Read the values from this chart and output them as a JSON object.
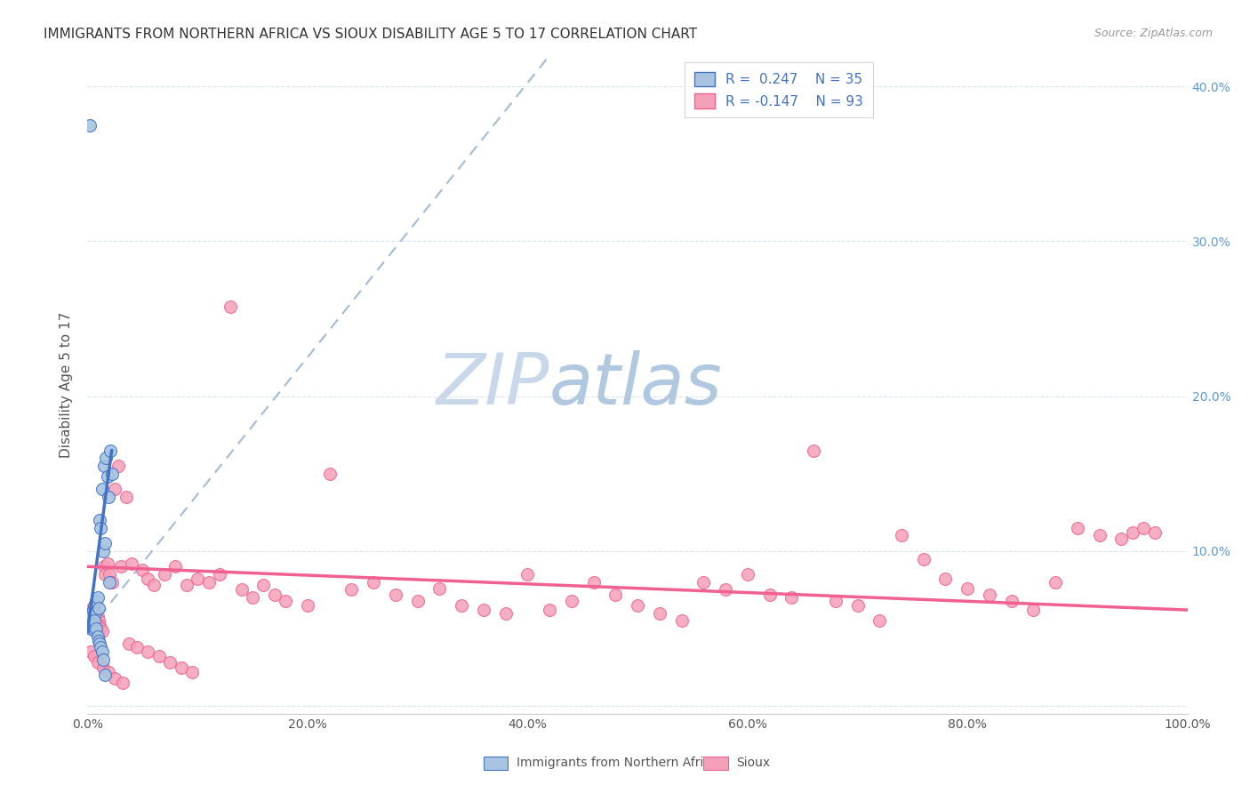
{
  "title": "IMMIGRANTS FROM NORTHERN AFRICA VS SIOUX DISABILITY AGE 5 TO 17 CORRELATION CHART",
  "source": "Source: ZipAtlas.com",
  "ylabel": "Disability Age 5 to 17",
  "x_min": 0.0,
  "x_max": 1.0,
  "y_min": -0.005,
  "y_max": 0.42,
  "color_blue": "#a8c4e0",
  "color_pink": "#f4a0b8",
  "line_blue": "#4472c4",
  "line_pink": "#f06090",
  "line_dash_color": "#a0bcd8",
  "watermark_zip_color": "#c8d8ea",
  "watermark_atlas_color": "#b0c8e0",
  "background": "#ffffff",
  "grid_color": "#d8e4f0",
  "right_tick_color": "#5b9bd5",
  "legend_text_color": "#4472c4",
  "bottom_legend_color": "#555555",
  "blue_scatter_x": [
    0.002,
    0.003,
    0.004,
    0.005,
    0.006,
    0.007,
    0.008,
    0.009,
    0.01,
    0.011,
    0.012,
    0.013,
    0.014,
    0.015,
    0.016,
    0.017,
    0.018,
    0.019,
    0.02,
    0.021,
    0.022,
    0.003,
    0.004,
    0.005,
    0.006,
    0.007,
    0.008,
    0.009,
    0.01,
    0.011,
    0.012,
    0.013,
    0.014,
    0.002,
    0.016
  ],
  "blue_scatter_y": [
    0.055,
    0.06,
    0.058,
    0.062,
    0.065,
    0.06,
    0.068,
    0.07,
    0.063,
    0.12,
    0.115,
    0.14,
    0.1,
    0.155,
    0.105,
    0.16,
    0.148,
    0.135,
    0.08,
    0.165,
    0.15,
    0.05,
    0.053,
    0.052,
    0.055,
    0.048,
    0.05,
    0.045,
    0.042,
    0.04,
    0.038,
    0.035,
    0.03,
    0.375,
    0.02
  ],
  "pink_scatter_x": [
    0.001,
    0.002,
    0.003,
    0.004,
    0.005,
    0.006,
    0.007,
    0.008,
    0.009,
    0.01,
    0.011,
    0.012,
    0.013,
    0.015,
    0.016,
    0.018,
    0.02,
    0.022,
    0.025,
    0.028,
    0.03,
    0.035,
    0.04,
    0.05,
    0.055,
    0.06,
    0.07,
    0.08,
    0.09,
    0.1,
    0.11,
    0.12,
    0.13,
    0.14,
    0.15,
    0.16,
    0.17,
    0.18,
    0.2,
    0.22,
    0.24,
    0.26,
    0.28,
    0.3,
    0.32,
    0.34,
    0.36,
    0.38,
    0.4,
    0.42,
    0.44,
    0.46,
    0.48,
    0.5,
    0.52,
    0.54,
    0.56,
    0.58,
    0.6,
    0.62,
    0.64,
    0.66,
    0.68,
    0.7,
    0.72,
    0.74,
    0.76,
    0.78,
    0.8,
    0.82,
    0.84,
    0.86,
    0.88,
    0.9,
    0.92,
    0.94,
    0.95,
    0.96,
    0.97,
    0.003,
    0.006,
    0.009,
    0.014,
    0.019,
    0.025,
    0.032,
    0.038,
    0.045,
    0.055,
    0.065,
    0.075,
    0.085,
    0.095
  ],
  "pink_scatter_y": [
    0.06,
    0.055,
    0.062,
    0.058,
    0.06,
    0.055,
    0.052,
    0.05,
    0.058,
    0.055,
    0.052,
    0.05,
    0.048,
    0.09,
    0.085,
    0.092,
    0.085,
    0.08,
    0.14,
    0.155,
    0.09,
    0.135,
    0.092,
    0.088,
    0.082,
    0.078,
    0.085,
    0.09,
    0.078,
    0.082,
    0.08,
    0.085,
    0.258,
    0.075,
    0.07,
    0.078,
    0.072,
    0.068,
    0.065,
    0.15,
    0.075,
    0.08,
    0.072,
    0.068,
    0.076,
    0.065,
    0.062,
    0.06,
    0.085,
    0.062,
    0.068,
    0.08,
    0.072,
    0.065,
    0.06,
    0.055,
    0.08,
    0.075,
    0.085,
    0.072,
    0.07,
    0.165,
    0.068,
    0.065,
    0.055,
    0.11,
    0.095,
    0.082,
    0.076,
    0.072,
    0.068,
    0.062,
    0.08,
    0.115,
    0.11,
    0.108,
    0.112,
    0.115,
    0.112,
    0.035,
    0.032,
    0.028,
    0.025,
    0.022,
    0.018,
    0.015,
    0.04,
    0.038,
    0.035,
    0.032,
    0.028,
    0.025,
    0.022
  ],
  "blue_trend_x0": 0.0,
  "blue_trend_y0": 0.048,
  "blue_trend_x1": 0.022,
  "blue_trend_y1": 0.165,
  "dash_trend_x0": 0.0,
  "dash_trend_y0": 0.048,
  "dash_trend_x1": 0.42,
  "dash_trend_y1": 0.42,
  "pink_trend_x0": 0.0,
  "pink_trend_y0": 0.09,
  "pink_trend_x1": 1.0,
  "pink_trend_y1": 0.062
}
